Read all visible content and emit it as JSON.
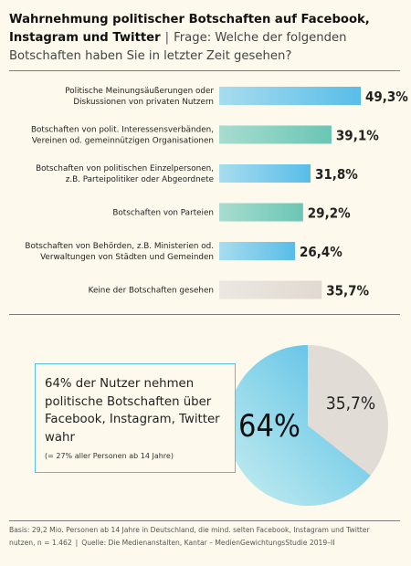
{
  "header": {
    "title": "Wahrnehmung politischer Botschaften auf Facebook, Instagram und Twitter",
    "separator": "|",
    "question": "Frage: Welche der folgenden Botschaften haben Sie in letzter Zeit gesehen?"
  },
  "colors": {
    "blue": "#58bde8",
    "teal": "#6ac6b4",
    "grey": "#e2dcd6",
    "rule": "#7a7a7a"
  },
  "chart_data": [
    {
      "type": "bar",
      "orientation": "horizontal",
      "categories": [
        [
          "Politische Meinungsäußerungen oder",
          "Diskussionen von privaten Nutzern"
        ],
        [
          "Botschaften von polit. Interessensverbänden,",
          "Vereinen od. gemeinnützigen Organisationen"
        ],
        [
          "Botschaften von politischen Einzelpersonen,",
          "z.B. Parteipolitiker oder Abgeordnete"
        ],
        [
          "Botschaften von Parteien"
        ],
        [
          "Botschaften von Behörden, z.B. Ministerien od.",
          "Verwaltungen von Städten und Gemeinden"
        ],
        [
          "Keine der Botschaften gesehen"
        ]
      ],
      "values": [
        49.3,
        39.1,
        31.8,
        29.2,
        26.4,
        35.7
      ],
      "value_labels": [
        "49,3%",
        "39,1%",
        "31,8%",
        "29,2%",
        "26,4%",
        "35,7%"
      ],
      "bar_colors": [
        "#58bde8",
        "#6ac6b4",
        "#58bde8",
        "#6ac6b4",
        "#58bde8",
        "#e2dcd6"
      ],
      "xlim": [
        0,
        49.3
      ]
    },
    {
      "type": "pie",
      "labels": [
        "64%",
        "35,7%"
      ],
      "values": [
        64.3,
        35.7
      ],
      "colors": [
        "#58bde8",
        "#e2dcd6"
      ]
    }
  ],
  "panel": {
    "headline": "64% der Nutzer nehmen politische Botschaften über Facebook, Instagram, Twitter wahr",
    "note": "(= 27% aller Personen ab 14 Jahre)"
  },
  "footer": {
    "basis": "Basis: 29,2 Mio. Personen ab 14 Jahre in Deutschland, die mind. selten Facebook, Instagram und Twitter nutzen, n = 1.462",
    "separator": "|",
    "source": "Quelle: Die Medienanstalten, Kantar – MedienGewichtungsStudie 2019–II"
  }
}
